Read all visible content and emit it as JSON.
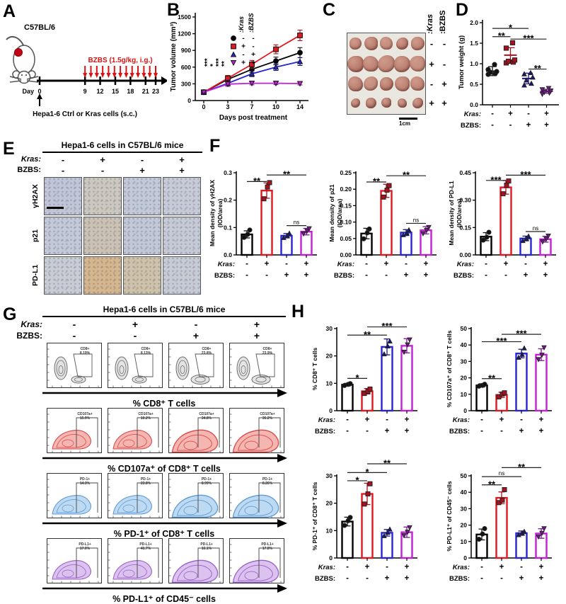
{
  "palette": {
    "black": "#000000",
    "red": "#e0181f",
    "blue": "#2724d6",
    "magenta": "#c21fd6",
    "darkred": "#a8121f",
    "darkblue": "#16167e",
    "darkpurple": "#7c1597"
  },
  "panels": {
    "A": {
      "letter": "A",
      "strain": "C57BL/6",
      "treatment": "BZBS (1.5g/kg, i.g.)",
      "day_label": "Day",
      "days": [
        0,
        9,
        12,
        15,
        18,
        21,
        23
      ],
      "injection": "Hepa1-6 Ctrl or Kras cells (s.c.)"
    },
    "B": {
      "letter": "B"
    },
    "C": {
      "letter": "C",
      "col1": ":Kras",
      "col2": ":BZBS",
      "rows": [
        [
          "-",
          "-"
        ],
        [
          "+",
          "-"
        ],
        [
          "-",
          "+"
        ],
        [
          "+",
          "+"
        ]
      ],
      "scalebar": "1cm"
    },
    "D": {
      "letter": "D"
    },
    "E": {
      "letter": "E",
      "header": "Hepa1-6 cells in C57BL/6 mice",
      "kras_label": "Kras:",
      "bzbs_label": "BZBS:",
      "kras": [
        "-",
        "+",
        "-",
        "+"
      ],
      "bzbs": [
        "-",
        "-",
        "+",
        "+"
      ],
      "rows": [
        "γH2AX",
        "p21",
        "PD-L1"
      ],
      "colors": [
        [
          "#c0c6d5",
          "#cdc8bd",
          "#c3c9d7",
          "#c7cbd6"
        ],
        [
          "#c3c9d7",
          "#ccc2b4",
          "#c2c8d6",
          "#c6cad5"
        ],
        [
          "#c9ccd3",
          "#d6b68c",
          "#cfc2a8",
          "#c7cbd3"
        ]
      ]
    },
    "F": {
      "letter": "F"
    },
    "G": {
      "letter": "G",
      "header": "Hepa1-6 cells in C57BL/6 mice",
      "kras_label": "Kras:",
      "bzbs_label": "BZBS:",
      "kras": [
        "-",
        "+",
        "-",
        "+"
      ],
      "bzbs": [
        "-",
        "-",
        "+",
        "+"
      ],
      "styles": {
        "gray": {
          "stroke": "#6e6e6e",
          "fill": "#e3e3e3"
        },
        "red": {
          "stroke": "#d84848",
          "fill": "#f5b5b0"
        },
        "blue": {
          "stroke": "#5b9bd5",
          "fill": "#bedaf2"
        },
        "purple": {
          "stroke": "#9a5fc9",
          "fill": "#dcc2ef"
        }
      },
      "rows": [
        {
          "name": "CD8",
          "style": "gray",
          "blob": "twolobe",
          "gate_label": "CD8+",
          "values": [
            "8.19%",
            "8.13%",
            "23.8%",
            "23.9%"
          ],
          "axis": "% CD8⁺ T cells"
        },
        {
          "name": "CD107a",
          "style": "red",
          "blob": "wedge",
          "gate_label": "CD107a+",
          "values": [
            "15.9%",
            "10.2%",
            "34.8%",
            "36.2%"
          ],
          "axis": "% CD107a⁺ of CD8⁺ T cells"
        },
        {
          "name": "PD-1",
          "style": "blue",
          "blob": "wedge",
          "gate_label": "PD-1+",
          "values": [
            "14.3%",
            "23.8%",
            "8.99%",
            "8.26%"
          ],
          "axis": "% PD-1⁺ of CD8⁺ T cells"
        },
        {
          "name": "PD-L1",
          "style": "purple",
          "blob": "wedge",
          "gate_label": "PD-L1+",
          "values": [
            "17.0%",
            "41.7%",
            "16.1%",
            "17.8%"
          ],
          "axis": "% PD-L1⁺ of CD45⁻ cells"
        }
      ]
    },
    "H": {
      "letter": "H"
    }
  },
  "chart_data": [
    {
      "id": "B",
      "type": "line",
      "xlabel": "Days post treatment",
      "ylabel": "Tumor volume (mm³)",
      "x": [
        0,
        3,
        7,
        10,
        14
      ],
      "ylim": [
        0,
        1500
      ],
      "yticks": [
        0,
        300,
        600,
        900,
        1200,
        1500
      ],
      "legend_header": [
        ":Kras",
        ":BZBS"
      ],
      "sig_stack": [
        "***",
        "*",
        "***",
        "**"
      ],
      "series": [
        {
          "name": "Kras- BZBS-",
          "marker": "circle",
          "color": "black",
          "kras": "-",
          "bzbs": "-",
          "values": [
            150,
            380,
            560,
            710,
            860
          ],
          "err": [
            15,
            45,
            60,
            70,
            90
          ]
        },
        {
          "name": "Kras+ BZBS-",
          "marker": "square",
          "color": "red",
          "kras": "+",
          "bzbs": "-",
          "values": [
            150,
            400,
            650,
            920,
            1170
          ],
          "err": [
            15,
            50,
            70,
            80,
            95
          ]
        },
        {
          "name": "Kras- BZBS+",
          "marker": "tri",
          "color": "blue",
          "kras": "-",
          "bzbs": "+",
          "values": [
            150,
            310,
            480,
            600,
            700
          ],
          "err": [
            15,
            55,
            50,
            60,
            70
          ]
        },
        {
          "name": "Kras+ BZBS+",
          "marker": "tridown",
          "color": "magenta",
          "kras": "+",
          "bzbs": "+",
          "values": [
            150,
            295,
            310,
            310,
            305
          ],
          "err": [
            10,
            40,
            28,
            25,
            25
          ]
        }
      ]
    },
    {
      "id": "D",
      "type": "scatter",
      "ylabel": "Tumor weight (g)",
      "ylim": [
        0,
        2
      ],
      "yticks": [
        0,
        0.5,
        1,
        1.5,
        2
      ],
      "ytick_labels": [
        "0.0",
        "0.5",
        "1.0",
        "1.5",
        "2.0"
      ],
      "kras_label": "Kras:",
      "bzbs_label": "BZBS:",
      "kras": [
        "-",
        "+",
        "-",
        "+"
      ],
      "bzbs": [
        "-",
        "-",
        "+",
        "+"
      ],
      "groups": [
        {
          "marker": "circle",
          "color": "black",
          "mean": 0.82,
          "sd": 0.11,
          "points": [
            0.74,
            0.76,
            0.79,
            0.81,
            0.86,
            0.98
          ]
        },
        {
          "marker": "square",
          "color": "red",
          "mean": 1.21,
          "sd": 0.18,
          "points": [
            1.02,
            1.04,
            1.06,
            1.09,
            1.38,
            1.51
          ]
        },
        {
          "marker": "tri",
          "color": "blue",
          "mean": 0.64,
          "sd": 0.13,
          "points": [
            0.48,
            0.52,
            0.6,
            0.67,
            0.75,
            0.78
          ]
        },
        {
          "marker": "tridown",
          "color": "magenta",
          "mean": 0.33,
          "sd": 0.05,
          "points": [
            0.26,
            0.29,
            0.31,
            0.34,
            0.37,
            0.4
          ]
        }
      ],
      "sig": [
        {
          "a": 0,
          "b": 1,
          "label": "**",
          "y": 1.66
        },
        {
          "a": 0,
          "b": 2,
          "label": "*",
          "y": 1.86
        },
        {
          "a": 1,
          "b": 3,
          "label": "***",
          "y": 1.6
        },
        {
          "a": 2,
          "b": 3,
          "label": "**",
          "y": 0.87
        }
      ]
    },
    {
      "id": "F1",
      "type": "bar",
      "ylabel": [
        "Mean density of γH2AX",
        "(IOD/area)"
      ],
      "ymax": 0.3,
      "yticks": [
        0,
        0.1,
        0.2,
        0.3
      ],
      "ytick_labels": [
        "0.0",
        "0.1",
        "0.2",
        "0.3"
      ],
      "values": [
        0.075,
        0.235,
        0.07,
        0.085
      ],
      "errors": [
        0.013,
        0.028,
        0.008,
        0.012
      ],
      "points": [
        [
          0.064,
          0.075,
          0.091
        ],
        [
          0.205,
          0.248,
          0.264
        ],
        [
          0.063,
          0.07,
          0.079
        ],
        [
          0.077,
          0.087,
          0.096
        ]
      ],
      "kras_label": "Kras:",
      "bzbs_label": "BZBS:",
      "kras": [
        "-",
        "+",
        "-",
        "+"
      ],
      "bzbs": [
        "-",
        "-",
        "+",
        "+"
      ],
      "sig": [
        {
          "a": 0,
          "b": 1,
          "label": "**",
          "y": 0.268
        },
        {
          "a": 1,
          "b": 3,
          "label": "**",
          "y": 0.292
        },
        {
          "a": 2,
          "b": 3,
          "label": "ns",
          "y": 0.107
        }
      ]
    },
    {
      "id": "F2",
      "type": "bar",
      "ylabel": [
        "Mean density of p21",
        "(IOD/area)"
      ],
      "ymax": 0.25,
      "yticks": [
        0,
        0.05,
        0.1,
        0.15,
        0.2,
        0.25
      ],
      "ytick_labels": [
        "0.00",
        "0.05",
        "0.10",
        "0.15",
        "0.20",
        "0.25"
      ],
      "values": [
        0.065,
        0.195,
        0.068,
        0.075
      ],
      "errors": [
        0.016,
        0.02,
        0.009,
        0.011
      ],
      "points": [
        [
          0.049,
          0.067,
          0.079
        ],
        [
          0.176,
          0.197,
          0.211
        ],
        [
          0.061,
          0.067,
          0.076
        ],
        [
          0.065,
          0.075,
          0.084
        ]
      ],
      "kras_label": "Kras:",
      "bzbs_label": "BZBS:",
      "kras": [
        "-",
        "+",
        "-",
        "+"
      ],
      "bzbs": [
        "-",
        "-",
        "+",
        "+"
      ],
      "sig": [
        {
          "a": 0,
          "b": 1,
          "label": "**",
          "y": 0.222
        },
        {
          "a": 1,
          "b": 3,
          "label": "**",
          "y": 0.241
        },
        {
          "a": 2,
          "b": 3,
          "label": "ns",
          "y": 0.096
        }
      ]
    },
    {
      "id": "F3",
      "type": "bar",
      "ylabel": [
        "Mean density of PD-L1",
        "(IOD/area)"
      ],
      "ymax": 0.45,
      "yticks": [
        0,
        0.15,
        0.3,
        0.45
      ],
      "ytick_labels": [
        "0.00",
        "0.15",
        "0.30",
        "0.45"
      ],
      "values": [
        0.1,
        0.37,
        0.09,
        0.086
      ],
      "errors": [
        0.022,
        0.037,
        0.013,
        0.016
      ],
      "points": [
        [
          0.081,
          0.097,
          0.124
        ],
        [
          0.335,
          0.382,
          0.405
        ],
        [
          0.078,
          0.09,
          0.103
        ],
        [
          0.072,
          0.087,
          0.104
        ]
      ],
      "kras_label": "Kras:",
      "bzbs_label": "BZBS:",
      "kras": [
        "-",
        "+",
        "-",
        "+"
      ],
      "bzbs": [
        "-",
        "-",
        "+",
        "+"
      ],
      "sig": [
        {
          "a": 0,
          "b": 1,
          "label": "***",
          "y": 0.408
        },
        {
          "a": 1,
          "b": 3,
          "label": "***",
          "y": 0.437
        },
        {
          "a": 2,
          "b": 3,
          "label": "ns",
          "y": 0.128
        }
      ]
    },
    {
      "id": "H1",
      "type": "bar",
      "ylabel": [
        "% CD8⁺ T cells"
      ],
      "ymax": 30,
      "yticks": [
        0,
        10,
        20,
        30
      ],
      "ytick_labels": [
        "0",
        "10",
        "20",
        "30"
      ],
      "values": [
        9.5,
        7.1,
        23.3,
        23.7
      ],
      "errors": [
        0.5,
        1,
        2.9,
        2.6
      ],
      "points": [
        [
          9.2,
          9.6,
          9.9
        ],
        [
          6.3,
          7.1,
          7.9
        ],
        [
          20.7,
          23.6,
          25.4
        ],
        [
          21.4,
          24.1,
          25.9
        ]
      ],
      "kras_label": "Kras:",
      "bzbs_label": "BZBS:",
      "kras": [
        "-",
        "+",
        "-",
        "+"
      ],
      "bzbs": [
        "-",
        "-",
        "+",
        "+"
      ],
      "sig": [
        {
          "a": 0,
          "b": 1,
          "label": "*",
          "y": 11.8
        },
        {
          "a": 0,
          "b": 2,
          "label": "**",
          "y": 27.6
        },
        {
          "a": 1,
          "b": 3,
          "label": "***",
          "y": 30.6
        }
      ]
    },
    {
      "id": "H2",
      "type": "bar",
      "ylabel": [
        "% CD107a⁺ of CD8⁺ T cells"
      ],
      "ymax": 50,
      "yticks": [
        0,
        10,
        20,
        30,
        40,
        50
      ],
      "ytick_labels": [
        "0",
        "10",
        "20",
        "30",
        "40",
        "50"
      ],
      "values": [
        15.4,
        9.6,
        34.8,
        34.1
      ],
      "errors": [
        1,
        1.6,
        2.6,
        3.6
      ],
      "points": [
        [
          14.9,
          15.4,
          16.1
        ],
        [
          8.4,
          10.1,
          10.9
        ],
        [
          32.4,
          34.2,
          38.1
        ],
        [
          31.2,
          33.9,
          38.4
        ]
      ],
      "kras_label": "Kras:",
      "bzbs_label": "BZBS:",
      "kras": [
        "-",
        "+",
        "-",
        "+"
      ],
      "bzbs": [
        "-",
        "-",
        "+",
        "+"
      ],
      "sig": [
        {
          "a": 0,
          "b": 1,
          "label": "**",
          "y": 19.5
        },
        {
          "a": 0,
          "b": 2,
          "label": "***",
          "y": 42
        },
        {
          "a": 1,
          "b": 3,
          "label": "***",
          "y": 46.5
        }
      ]
    },
    {
      "id": "H3",
      "type": "bar",
      "ylabel": [
        "% PD-1⁺ of CD8⁺ T cells"
      ],
      "ymax": 30,
      "yticks": [
        0,
        10,
        20,
        30
      ],
      "ytick_labels": [
        "0",
        "10",
        "20",
        "30"
      ],
      "values": [
        13.3,
        23.4,
        9.2,
        9.4
      ],
      "errors": [
        1.6,
        3.9,
        1.2,
        1.9
      ],
      "points": [
        [
          11.9,
          13.6,
          14.8
        ],
        [
          19.7,
          23.4,
          27.1
        ],
        [
          8.1,
          9.3,
          10.5
        ],
        [
          8.2,
          9.5,
          11.1
        ]
      ],
      "kras_label": "Kras:",
      "bzbs_label": "BZBS:",
      "kras": [
        "-",
        "+",
        "-",
        "+"
      ],
      "bzbs": [
        "-",
        "-",
        "+",
        "+"
      ],
      "sig": [
        {
          "a": 0,
          "b": 1,
          "label": "*",
          "y": 28.2
        },
        {
          "a": 0,
          "b": 2,
          "label": "*",
          "y": 31.2
        },
        {
          "a": 1,
          "b": 3,
          "label": "**",
          "y": 34.4
        }
      ]
    },
    {
      "id": "H4",
      "type": "bar",
      "ylabel": [
        "% PD-L1⁺ of CD45⁻ cells"
      ],
      "ymax": 50,
      "yticks": [
        0,
        10,
        20,
        30,
        40,
        50
      ],
      "ytick_labels": [
        "0",
        "10",
        "20",
        "30",
        "40",
        "50"
      ],
      "values": [
        14.3,
        36.6,
        15.1,
        14.9
      ],
      "errors": [
        3.3,
        3.6,
        1.3,
        2.9
      ],
      "points": [
        [
          11.4,
          14.6,
          17.9
        ],
        [
          33.7,
          35.2,
          41.6
        ],
        [
          14.1,
          15.2,
          16.1
        ],
        [
          12.9,
          15.1,
          17.9
        ]
      ],
      "kras_label": "Kras:",
      "bzbs_label": "BZBS:",
      "kras": [
        "-",
        "+",
        "-",
        "+"
      ],
      "bzbs": [
        "-",
        "-",
        "+",
        "+"
      ],
      "sig": [
        {
          "a": 0,
          "b": 1,
          "label": "**",
          "y": 44.5
        },
        {
          "a": 0,
          "b": 2,
          "label": "ns",
          "y": 49.5
        },
        {
          "a": 1,
          "b": 3,
          "label": "**",
          "y": 55
        }
      ]
    }
  ]
}
